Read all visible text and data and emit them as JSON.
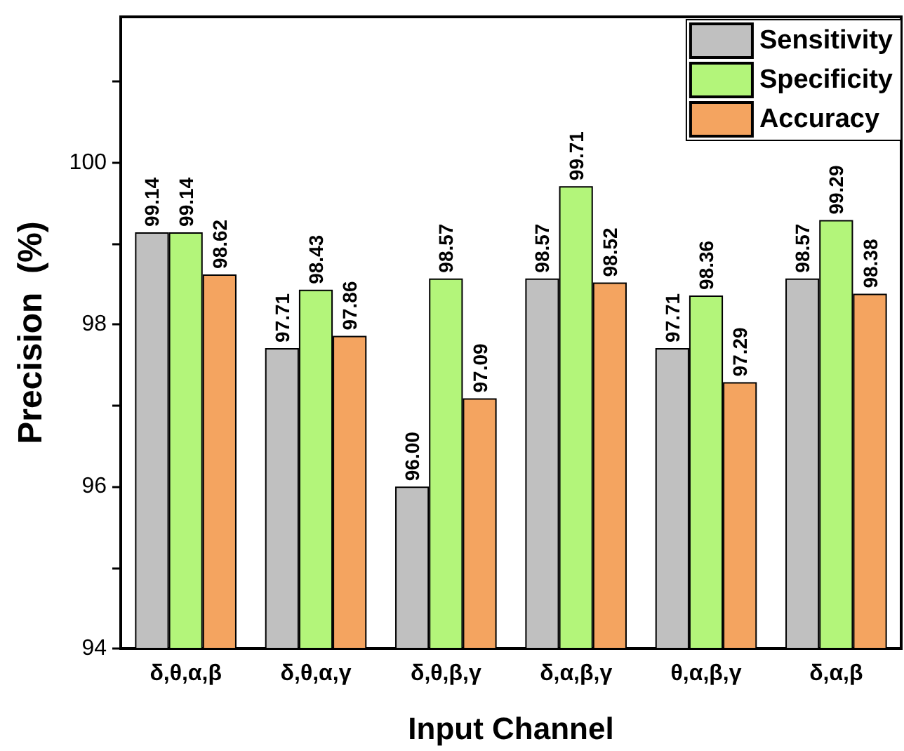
{
  "chart_data": {
    "type": "bar",
    "xlabel": "Input Channel",
    "ylabel": "Precision  (%)",
    "categories": [
      "δ,θ,α,β",
      "δ,θ,α,γ",
      "δ,θ,β,γ",
      "δ,α,β,γ",
      "θ,α,β,γ",
      "δ,α,β"
    ],
    "series": [
      {
        "name": "Sensitivity",
        "color": "#c0c0c0",
        "values": [
          99.14,
          97.71,
          96.0,
          98.57,
          97.71,
          98.57
        ],
        "value_labels": [
          "99.14",
          "97.71",
          "96.00",
          "98.57",
          "97.71",
          "98.57"
        ]
      },
      {
        "name": "Specificity",
        "color": "#b3f57a",
        "values": [
          99.14,
          98.43,
          98.57,
          99.71,
          98.36,
          99.29
        ],
        "value_labels": [
          "99.14",
          "98.43",
          "98.57",
          "99.71",
          "98.36",
          "99.29"
        ]
      },
      {
        "name": "Accuracy",
        "color": "#f4a460",
        "values": [
          98.62,
          97.86,
          97.09,
          98.52,
          97.29,
          98.38
        ],
        "value_labels": [
          "98.62",
          "97.86",
          "97.09",
          "98.52",
          "97.29",
          "98.38"
        ]
      }
    ],
    "ylim": [
      94,
      101.8
    ],
    "yticks": [
      94,
      {
        "value": 95,
        "label": null
      },
      96,
      {
        "value": 97,
        "label": null
      },
      98,
      {
        "value": 99,
        "label": null
      },
      100,
      {
        "value": 101,
        "label": null
      }
    ],
    "grid": false,
    "legend": "top right"
  }
}
